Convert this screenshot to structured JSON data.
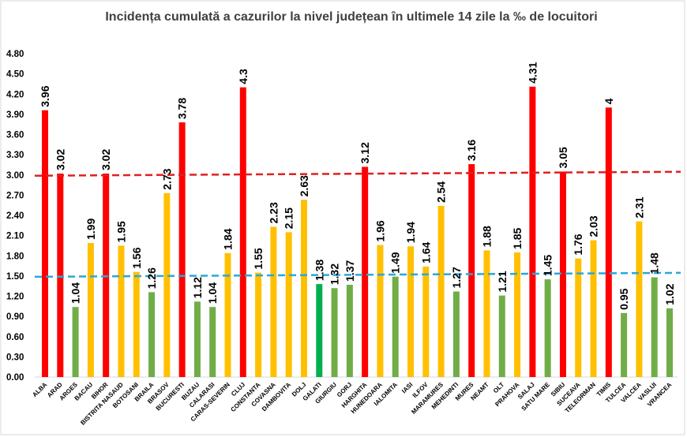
{
  "chart_data": {
    "type": "bar",
    "title": "Incidența cumulată a cazurilor la nivel județean în ultimele 14 zile la ‰ de locuitori",
    "xlabel": "",
    "ylabel": "",
    "ylim": [
      0,
      4.8
    ],
    "yticks": [
      "0.00",
      "0.30",
      "0.60",
      "0.90",
      "1.20",
      "1.50",
      "1.80",
      "2.10",
      "2.40",
      "2.70",
      "3.00",
      "3.30",
      "3.60",
      "3.90",
      "4.20",
      "4.50",
      "4.80"
    ],
    "grid": false,
    "legend": "none",
    "categories": [
      "ALBA",
      "ARAD",
      "ARGES",
      "BACAU",
      "BIHOR",
      "BISTRITA NASAUD",
      "BOTOSANI",
      "BRAILA",
      "BRASOV",
      "BUCURESTI",
      "BUZAU",
      "CALARASI",
      "CARAS-SEVERIN",
      "CLUJ",
      "CONSTANTA",
      "COVASNA",
      "DAMBOVITA",
      "DOLJ",
      "GALATI",
      "GIURGIU",
      "GORJ",
      "HARGHITA",
      "HUNEDOARA",
      "IALOMITA",
      "IASI",
      "ILFOV",
      "MARAMURES",
      "MEHEDINTI",
      "MURES",
      "NEAMT",
      "OLT",
      "PRAHOVA",
      "SALAJ",
      "SATU MARE",
      "SIBIU",
      "SUCEAVA",
      "TELEORMAN",
      "TIMIS",
      "TULCEA",
      "VALCEA",
      "VASLUI",
      "VRANCEA"
    ],
    "values": [
      3.96,
      3.02,
      1.04,
      1.99,
      3.02,
      1.95,
      1.56,
      1.26,
      2.73,
      3.78,
      1.12,
      1.04,
      1.84,
      4.3,
      1.55,
      2.23,
      2.15,
      2.63,
      1.38,
      1.32,
      1.37,
      3.12,
      1.96,
      1.49,
      1.94,
      1.64,
      2.54,
      1.27,
      3.16,
      1.88,
      1.21,
      1.85,
      4.31,
      1.45,
      3.05,
      1.76,
      2.03,
      4,
      0.95,
      2.31,
      1.48,
      1.02
    ],
    "value_labels": [
      "3.96",
      "3.02",
      "1.04",
      "1.99",
      "3.02",
      "1.95",
      "1.56",
      "1.26",
      "2.73",
      "3.78",
      "1.12",
      "1.04",
      "1.84",
      "4.3",
      "1.55",
      "2.23",
      "2.15",
      "2.63",
      "1.38",
      "1.32",
      "1.37",
      "3.12",
      "1.96",
      "1.49",
      "1.94",
      "1.64",
      "2.54",
      "1.27",
      "3.16",
      "1.88",
      "1.21",
      "1.85",
      "4.31",
      "1.45",
      "3.05",
      "1.76",
      "2.03",
      "4",
      "0.95",
      "2.31",
      "1.48",
      "1.02"
    ],
    "bar_colors": [
      "red",
      "red",
      "green",
      "yellow",
      "red",
      "yellow",
      "yellow",
      "green",
      "yellow",
      "red",
      "green",
      "green",
      "yellow",
      "red",
      "yellow",
      "yellow",
      "yellow",
      "yellow",
      "darkgreen",
      "green",
      "green",
      "red",
      "yellow",
      "green",
      "yellow",
      "yellow",
      "yellow",
      "green",
      "red",
      "yellow",
      "green",
      "yellow",
      "red",
      "green",
      "red",
      "yellow",
      "yellow",
      "red",
      "green",
      "yellow",
      "green",
      "green"
    ],
    "palette": {
      "red": "#FF0000",
      "yellow": "#FFC000",
      "green": "#70AD47",
      "darkgreen": "#00B050"
    },
    "reference_lines": [
      {
        "value": 3.0,
        "color": "#E02020",
        "style": "dashed"
      },
      {
        "value": 1.5,
        "color": "#2AA8D8",
        "style": "dashed"
      }
    ]
  }
}
